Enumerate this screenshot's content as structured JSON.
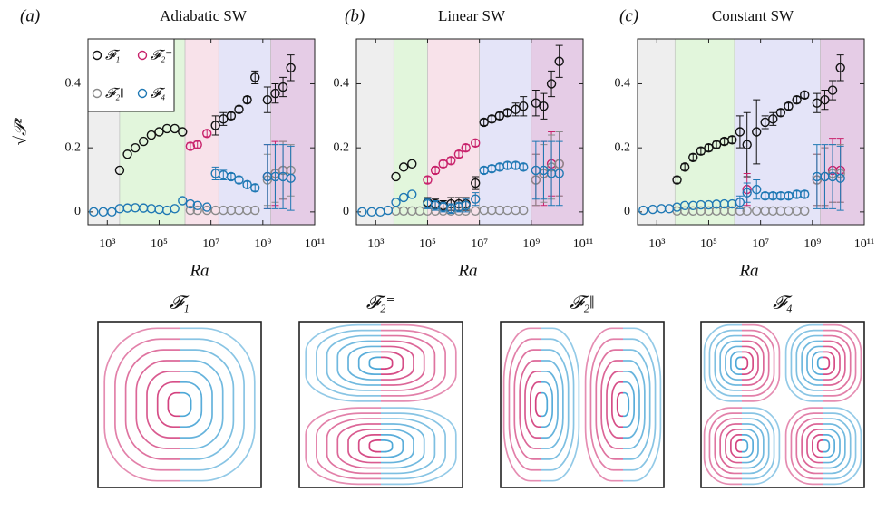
{
  "chart_data": [
    {
      "type": "scatter",
      "panel_label": "(a)",
      "title": "Adiabatic SW",
      "x_label": "Ra",
      "y_label": "√𝒫²",
      "log_x": true,
      "xlim": [
        180,
        100000000000
      ],
      "ylim": [
        -0.04,
        0.54
      ],
      "xticks": [
        {
          "value": 1000,
          "label": "10³"
        },
        {
          "value": 100000,
          "label": "10⁵"
        },
        {
          "value": 10000000,
          "label": "10⁷"
        },
        {
          "value": 1000000000,
          "label": "10⁹"
        },
        {
          "value": 100000000000,
          "label": "10¹¹"
        }
      ],
      "yticks": [
        0,
        0.2,
        0.4
      ],
      "legend": "upper left",
      "regions": [
        {
          "xlim": [
            180,
            3000
          ],
          "color": "#eeeeee"
        },
        {
          "xlim": [
            3000,
            1000000
          ],
          "color": "#e2f6dc"
        },
        {
          "xlim": [
            1000000,
            20000000
          ],
          "color": "#f8e2ea"
        },
        {
          "xlim": [
            20000000,
            2000000000
          ],
          "color": "#e4e4f8"
        },
        {
          "xlim": [
            2000000000,
            100000000000
          ],
          "color": "#e5cce6"
        }
      ],
      "x": [
        300,
        700,
        1500,
        3000,
        6000,
        12000,
        25000,
        50000,
        100000,
        200000,
        400000,
        800000,
        1600000,
        3000000,
        7000000,
        15000000,
        30000000,
        60000000,
        120000000,
        250000000,
        500000000,
        1500000000,
        3000000000,
        6000000000,
        12000000000
      ],
      "series": [
        {
          "name": "𝓕₁",
          "color": "#111111",
          "values": [
            null,
            null,
            null,
            0.13,
            0.18,
            0.2,
            0.22,
            0.24,
            0.25,
            0.26,
            0.26,
            0.25,
            null,
            null,
            null,
            0.27,
            0.29,
            0.3,
            0.32,
            0.35,
            0.42,
            0.35,
            0.37,
            0.39,
            0.45
          ],
          "errors": [
            null,
            null,
            null,
            null,
            null,
            null,
            null,
            null,
            null,
            null,
            null,
            null,
            null,
            null,
            null,
            0.03,
            0.02,
            0.01,
            0.01,
            0.01,
            0.02,
            0.04,
            0.03,
            0.03,
            0.04
          ]
        },
        {
          "name": "𝓕₂⁼",
          "color": "#c8226b",
          "values": [
            null,
            null,
            null,
            null,
            null,
            null,
            null,
            null,
            null,
            null,
            null,
            null,
            0.205,
            0.21,
            0.245,
            null,
            null,
            null,
            null,
            null,
            null,
            0.11,
            0.12,
            0.13,
            null
          ],
          "errors": [
            null,
            null,
            null,
            null,
            null,
            null,
            null,
            null,
            null,
            null,
            null,
            null,
            0.01,
            0.01,
            0.01,
            null,
            null,
            null,
            null,
            null,
            null,
            0.1,
            0.1,
            0.09,
            null
          ]
        },
        {
          "name": "𝓕₂‖",
          "color": "#8a8a8a",
          "values": [
            null,
            null,
            null,
            null,
            null,
            null,
            null,
            null,
            null,
            null,
            null,
            null,
            0.005,
            0.005,
            0.005,
            0.005,
            0.005,
            0.005,
            0.005,
            0.005,
            0.005,
            0.1,
            0.12,
            0.13,
            0.13
          ],
          "errors": [
            null,
            null,
            null,
            null,
            null,
            null,
            null,
            null,
            null,
            null,
            null,
            null,
            null,
            null,
            null,
            null,
            null,
            null,
            null,
            null,
            null,
            0.08,
            0.09,
            0.09,
            0.08
          ]
        },
        {
          "name": "𝓕₄",
          "color": "#1f78b4",
          "values": [
            0,
            0,
            0,
            0.01,
            0.012,
            0.013,
            0.012,
            0.01,
            0.008,
            0.005,
            0.01,
            0.035,
            0.025,
            0.02,
            0.015,
            0.12,
            0.115,
            0.11,
            0.1,
            0.085,
            0.075,
            0.11,
            0.11,
            0.11,
            0.105
          ],
          "errors": [
            null,
            null,
            null,
            null,
            null,
            null,
            null,
            null,
            null,
            null,
            null,
            null,
            null,
            null,
            null,
            0.02,
            0.015,
            0.01,
            0.01,
            0.01,
            0.01,
            0.1,
            0.1,
            0.1,
            0.1
          ]
        }
      ]
    },
    {
      "type": "scatter",
      "panel_label": "(b)",
      "title": "Linear SW",
      "x_label": "Ra",
      "log_x": true,
      "xlim": [
        180,
        100000000000
      ],
      "ylim": [
        -0.04,
        0.54
      ],
      "xticks": [
        {
          "value": 1000,
          "label": "10³"
        },
        {
          "value": 100000,
          "label": "10⁵"
        },
        {
          "value": 10000000,
          "label": "10⁷"
        },
        {
          "value": 1000000000,
          "label": "10⁹"
        },
        {
          "value": 100000000000,
          "label": "10¹¹"
        }
      ],
      "yticks": [
        0,
        0.2,
        0.4
      ],
      "regions": [
        {
          "xlim": [
            180,
            5000
          ],
          "color": "#eeeeee"
        },
        {
          "xlim": [
            5000,
            100000
          ],
          "color": "#e2f6dc"
        },
        {
          "xlim": [
            100000,
            10000000
          ],
          "color": "#f8e2ea"
        },
        {
          "xlim": [
            10000000,
            1000000000
          ],
          "color": "#e4e4f8"
        },
        {
          "xlim": [
            1000000000,
            100000000000
          ],
          "color": "#e5cce6"
        }
      ],
      "x": [
        300,
        700,
        1500,
        3000,
        6000,
        12000,
        25000,
        50000,
        100000,
        200000,
        400000,
        800000,
        1600000,
        3000000,
        7000000,
        15000000,
        30000000,
        60000000,
        120000000,
        250000000,
        500000000,
        1500000000,
        3000000000,
        6000000000,
        12000000000
      ],
      "series": [
        {
          "name": "𝓕₁",
          "color": "#111111",
          "values": [
            null,
            null,
            null,
            null,
            0.11,
            0.14,
            0.15,
            null,
            0.03,
            0.025,
            0.02,
            0.025,
            0.025,
            0.025,
            0.09,
            0.28,
            0.29,
            0.3,
            0.31,
            0.32,
            0.33,
            0.34,
            0.33,
            0.4,
            0.47
          ],
          "errors": [
            null,
            null,
            null,
            null,
            null,
            null,
            null,
            null,
            0.015,
            0.015,
            0.015,
            0.02,
            0.02,
            0.02,
            0.02,
            0.01,
            0.01,
            0.01,
            0.01,
            0.02,
            0.03,
            0.04,
            0.04,
            0.04,
            0.05
          ]
        },
        {
          "name": "𝓕₂⁼",
          "color": "#c8226b",
          "values": [
            null,
            null,
            null,
            null,
            null,
            null,
            null,
            null,
            0.1,
            0.13,
            0.15,
            0.16,
            0.18,
            0.2,
            0.215,
            null,
            null,
            null,
            null,
            null,
            null,
            0.1,
            0.12,
            0.15,
            0.15
          ],
          "errors": [
            null,
            null,
            null,
            null,
            null,
            null,
            null,
            null,
            0.01,
            0.01,
            0.01,
            0.01,
            0.01,
            0.01,
            0.01,
            null,
            null,
            null,
            null,
            null,
            null,
            0.08,
            0.1,
            0.1,
            0.1
          ]
        },
        {
          "name": "𝓕₂‖",
          "color": "#8a8a8a",
          "values": [
            null,
            null,
            null,
            null,
            0.003,
            0.003,
            0.003,
            0.003,
            0.003,
            0.003,
            0.003,
            0.003,
            0.003,
            0.003,
            0.003,
            0.005,
            0.005,
            0.005,
            0.005,
            0.005,
            0.005,
            0.1,
            0.12,
            0.14,
            0.15
          ],
          "errors": [
            null,
            null,
            null,
            null,
            null,
            null,
            null,
            null,
            null,
            null,
            null,
            null,
            null,
            null,
            null,
            null,
            null,
            null,
            null,
            null,
            null,
            0.08,
            0.09,
            0.1,
            0.1
          ]
        },
        {
          "name": "𝓕₄",
          "color": "#1f78b4",
          "values": [
            0,
            0,
            0,
            0.005,
            0.03,
            0.045,
            0.055,
            null,
            0.025,
            0.02,
            0.015,
            0.01,
            0.015,
            0.02,
            0.04,
            0.13,
            0.135,
            0.14,
            0.145,
            0.145,
            0.14,
            0.13,
            0.13,
            0.12,
            0.12
          ],
          "errors": [
            null,
            null,
            null,
            null,
            null,
            null,
            null,
            null,
            0.015,
            0.015,
            0.015,
            0.015,
            0.015,
            0.02,
            0.02,
            0.01,
            0.01,
            0.01,
            0.01,
            0.01,
            0.01,
            0.09,
            0.09,
            0.1,
            0.1
          ]
        }
      ]
    },
    {
      "type": "scatter",
      "panel_label": "(c)",
      "title": "Constant SW",
      "x_label": "Ra",
      "log_x": true,
      "xlim": [
        180,
        100000000000
      ],
      "ylim": [
        -0.04,
        0.54
      ],
      "xticks": [
        {
          "value": 1000,
          "label": "10³"
        },
        {
          "value": 100000,
          "label": "10⁵"
        },
        {
          "value": 10000000,
          "label": "10⁷"
        },
        {
          "value": 1000000000,
          "label": "10⁹"
        },
        {
          "value": 100000000000,
          "label": "10¹¹"
        }
      ],
      "yticks": [
        0,
        0.2,
        0.4
      ],
      "regions": [
        {
          "xlim": [
            180,
            5000
          ],
          "color": "#eeeeee"
        },
        {
          "xlim": [
            5000,
            1000000
          ],
          "color": "#e2f6dc"
        },
        {
          "xlim": [
            1000000,
            2000000000
          ],
          "color": "#e4e4f8"
        },
        {
          "xlim": [
            2000000000,
            100000000000
          ],
          "color": "#e5cce6"
        }
      ],
      "x": [
        300,
        700,
        1500,
        3000,
        6000,
        12000,
        25000,
        50000,
        100000,
        200000,
        400000,
        800000,
        1600000,
        3000000,
        7000000,
        15000000,
        30000000,
        60000000,
        120000000,
        250000000,
        500000000,
        1500000000,
        3000000000,
        6000000000,
        12000000000
      ],
      "series": [
        {
          "name": "𝓕₁",
          "color": "#111111",
          "values": [
            null,
            null,
            null,
            null,
            0.1,
            0.14,
            0.17,
            0.19,
            0.2,
            0.21,
            0.22,
            0.225,
            0.25,
            0.21,
            0.25,
            0.28,
            0.29,
            0.31,
            0.33,
            0.35,
            0.365,
            0.34,
            0.35,
            0.38,
            0.45
          ],
          "errors": [
            null,
            null,
            null,
            null,
            0.01,
            0.01,
            0.01,
            0.01,
            0.01,
            0.01,
            0.01,
            0.01,
            0.05,
            0.1,
            0.1,
            0.02,
            0.02,
            0.01,
            0.01,
            0.01,
            0.01,
            0.03,
            0.03,
            0.03,
            0.04
          ]
        },
        {
          "name": "𝓕₂⁼",
          "color": "#c8226b",
          "values": [
            null,
            null,
            null,
            null,
            null,
            null,
            null,
            null,
            null,
            null,
            null,
            null,
            null,
            0.07,
            null,
            null,
            null,
            null,
            null,
            null,
            null,
            0.1,
            0.11,
            0.13,
            0.13
          ],
          "errors": [
            null,
            null,
            null,
            null,
            null,
            null,
            null,
            null,
            null,
            null,
            null,
            null,
            null,
            0.05,
            null,
            null,
            null,
            null,
            null,
            null,
            null,
            0.08,
            0.09,
            0.1,
            0.1
          ]
        },
        {
          "name": "𝓕₂‖",
          "color": "#8a8a8a",
          "values": [
            null,
            null,
            null,
            null,
            0.003,
            0.003,
            0.003,
            0.003,
            0.003,
            0.003,
            0.003,
            0.003,
            0.003,
            0.003,
            0.003,
            0.003,
            0.003,
            0.003,
            0.003,
            0.003,
            0.003,
            0.1,
            0.11,
            0.12,
            0.12
          ],
          "errors": [
            null,
            null,
            null,
            null,
            null,
            null,
            null,
            null,
            null,
            null,
            null,
            null,
            null,
            null,
            null,
            null,
            null,
            null,
            null,
            null,
            null,
            0.08,
            0.09,
            0.09,
            0.09
          ]
        },
        {
          "name": "𝓕₄",
          "color": "#1f78b4",
          "values": [
            0.005,
            0.008,
            0.01,
            0.01,
            0.015,
            0.02,
            0.02,
            0.022,
            0.022,
            0.024,
            0.025,
            0.025,
            0.03,
            0.06,
            0.07,
            0.05,
            0.05,
            0.05,
            0.05,
            0.055,
            0.055,
            0.11,
            0.11,
            0.11,
            0.105
          ],
          "errors": [
            null,
            null,
            null,
            null,
            null,
            null,
            null,
            null,
            null,
            null,
            null,
            null,
            0.02,
            0.03,
            0.03,
            0.01,
            0.01,
            0.01,
            0.01,
            0.01,
            0.01,
            0.1,
            0.1,
            0.1,
            0.1
          ]
        }
      ]
    }
  ],
  "flow_panels": [
    {
      "label": "𝓕₁"
    },
    {
      "label": "𝓕₂⁼"
    },
    {
      "label": "𝓕₂‖"
    },
    {
      "label": "𝓕₄"
    }
  ]
}
